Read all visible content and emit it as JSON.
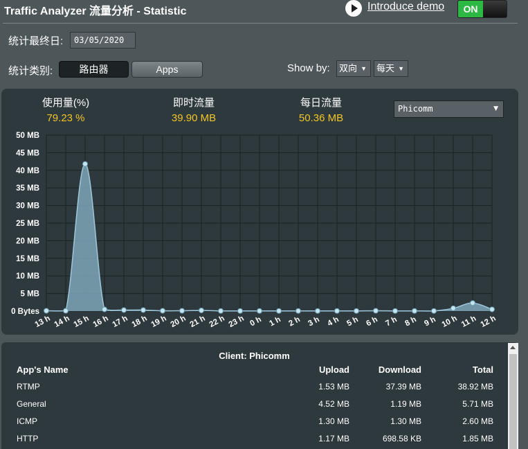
{
  "header": {
    "title": "Traffic Analyzer 流量分析 - Statistic",
    "demo_link": "Introduce demo",
    "toggle_label": "ON"
  },
  "controls": {
    "end_date_label": "统计最终日:",
    "end_date_value": "03/05/2020",
    "category_label": "统计类别:",
    "category_router": "路由器",
    "category_apps": "Apps",
    "show_by_label": "Show by:",
    "direction_value": "双向",
    "period_value": "每天"
  },
  "stats": {
    "usage_label": "使用量(%)",
    "usage_value": "79.23 %",
    "realtime_label": "即时流量",
    "realtime_value": "39.90 MB",
    "daily_label": "每日流量",
    "daily_value": "50.36 MB",
    "client_value": "Phicomm"
  },
  "chart_data": {
    "type": "area",
    "title": "",
    "xlabel": "",
    "ylabel": "",
    "y_tick_labels": [
      "50 MB",
      "45 MB",
      "40 MB",
      "35 MB",
      "30 MB",
      "25 MB",
      "20 MB",
      "15 MB",
      "10 MB",
      "5 MB",
      "0 Bytes"
    ],
    "ylim": [
      0,
      50
    ],
    "y_unit": "MB",
    "x": [
      "13 h",
      "14 h",
      "15 h",
      "16 h",
      "17 h",
      "18 h",
      "19 h",
      "20 h",
      "21 h",
      "22 h",
      "23 h",
      "0 h",
      "1 h",
      "2 h",
      "3 h",
      "4 h",
      "5 h",
      "6 h",
      "7 h",
      "8 h",
      "9 h",
      "10 h",
      "11 h",
      "12 h"
    ],
    "values": [
      0.1,
      0.1,
      41.8,
      0.5,
      0.3,
      0.3,
      0.1,
      0.1,
      0.2,
      0.05,
      0.05,
      0.05,
      0.05,
      0.05,
      0.05,
      0.05,
      0.05,
      0.1,
      0.05,
      0.05,
      0.05,
      0.8,
      2.3,
      0.5
    ],
    "grid": true,
    "colors": {
      "fill": "#7ea6b8",
      "stroke": "#9ec8da",
      "point": "#c4e4f0",
      "grid": "#1a2225",
      "panel": "#2e393d"
    }
  },
  "table": {
    "client_title": "Client: Phicomm",
    "headers": [
      "App's Name",
      "Upload",
      "Download",
      "Total"
    ],
    "rows": [
      [
        "RTMP",
        "1.53 MB",
        "37.39 MB",
        "38.92 MB"
      ],
      [
        "General",
        "4.52 MB",
        "1.19 MB",
        "5.71 MB"
      ],
      [
        "ICMP",
        "1.30 MB",
        "1.30 MB",
        "2.60 MB"
      ],
      [
        "HTTP",
        "1.17 MB",
        "698.58 KB",
        "1.85 MB"
      ]
    ]
  },
  "icons": {
    "play": "play-circle-icon",
    "dropdown": "chevron-down-icon"
  }
}
